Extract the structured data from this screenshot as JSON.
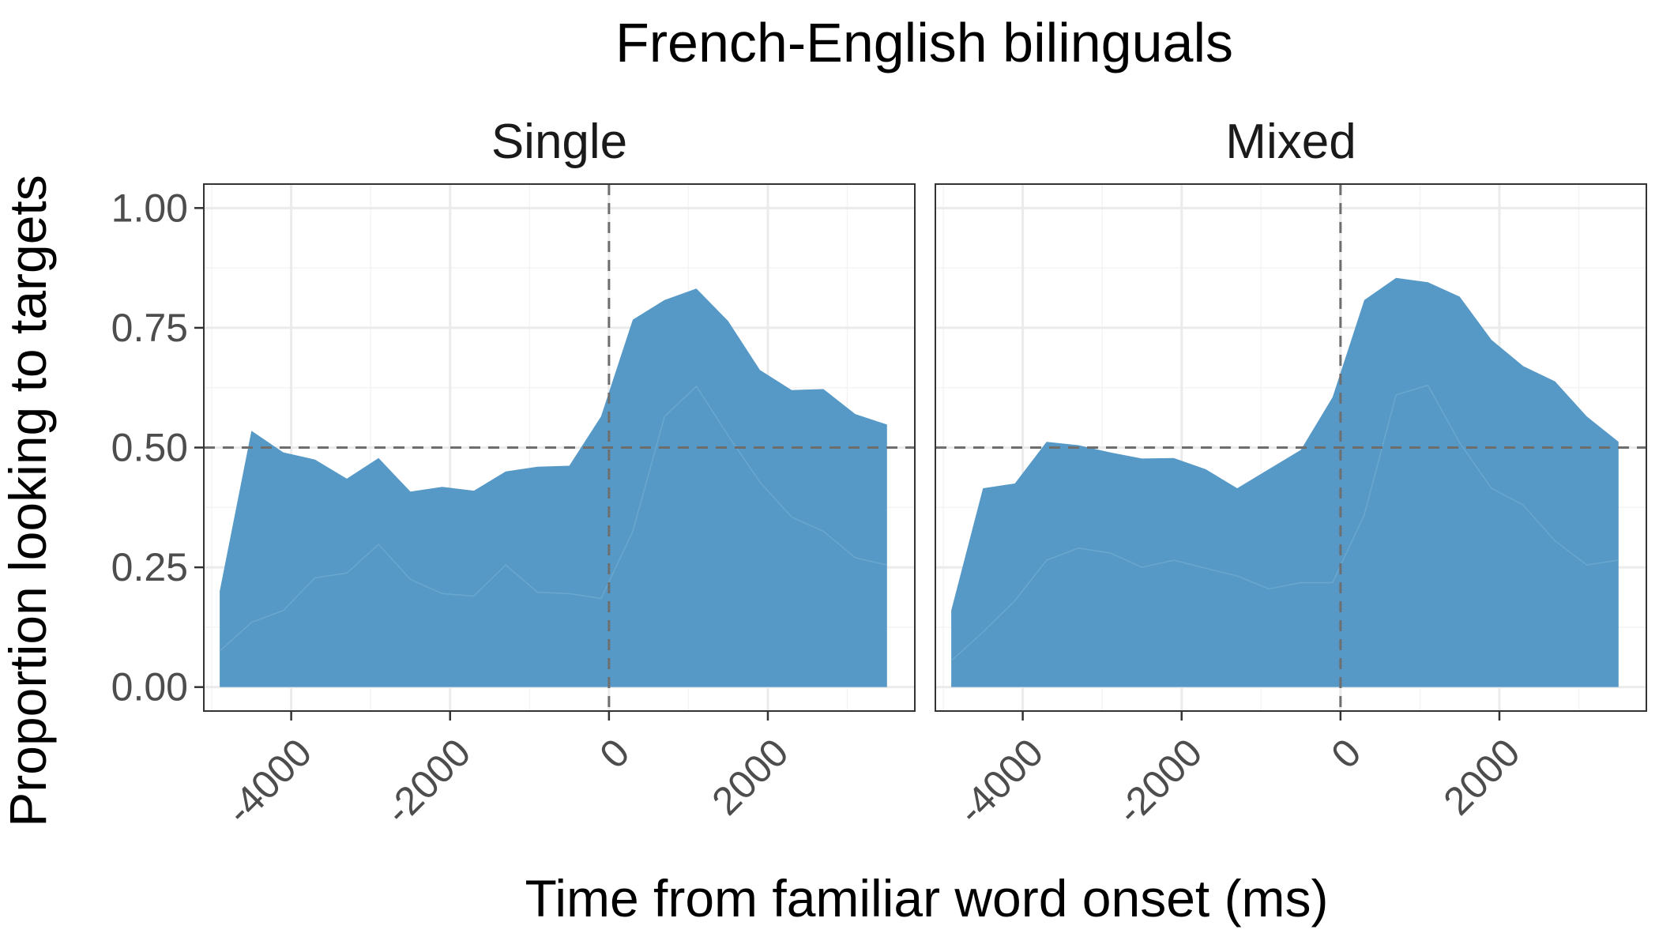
{
  "title": "French-English bilinguals",
  "xlabel": "Time from familiar word onset (ms)",
  "ylabel": "Proportion looking to targets",
  "colors": {
    "fill": "#5699c6",
    "panel_border": "#333333",
    "grid_major": "#ebebeb",
    "grid_minor": "#f4f4f4",
    "reference_line": "#6e6e6e",
    "tick_text": "#4d4d4d"
  },
  "chart_data": {
    "type": "area",
    "title": "French-English bilinguals",
    "xlabel": "Time from familiar word onset (ms)",
    "ylabel": "Proportion looking to targets",
    "xlim": [
      -5100,
      3850
    ],
    "ylim": [
      -0.05,
      1.05
    ],
    "x_ticks": [
      -4000,
      -2000,
      0,
      2000
    ],
    "x_tick_labels": [
      "-4000",
      "-2000",
      "0",
      "2000"
    ],
    "y_ticks": [
      0,
      0.25,
      0.5,
      0.75,
      1
    ],
    "y_tick_labels": [
      "0.00",
      "0.25",
      "0.50",
      "0.75",
      "1.00"
    ],
    "reference_lines": {
      "x": 0,
      "y": 0.5
    },
    "grid": true,
    "panels": [
      {
        "name": "Single",
        "x": [
          -4900,
          -4500,
          -4100,
          -3700,
          -3300,
          -2900,
          -2500,
          -2100,
          -1700,
          -1300,
          -900,
          -500,
          -100,
          300,
          700,
          1100,
          1500,
          1900,
          2300,
          2700,
          3100,
          3500
        ],
        "upper": [
          0.2,
          0.535,
          0.49,
          0.475,
          0.435,
          0.478,
          0.408,
          0.418,
          0.41,
          0.45,
          0.46,
          0.462,
          0.565,
          0.767,
          0.808,
          0.832,
          0.764,
          0.662,
          0.62,
          0.622,
          0.57,
          0.548
        ],
        "lower": [
          0.075,
          0.135,
          0.16,
          0.228,
          0.238,
          0.298,
          0.225,
          0.195,
          0.19,
          0.255,
          0.198,
          0.195,
          0.185,
          0.325,
          0.565,
          0.628,
          0.525,
          0.428,
          0.355,
          0.325,
          0.27,
          0.255
        ]
      },
      {
        "name": "Mixed",
        "x": [
          -4900,
          -4500,
          -4100,
          -3700,
          -3300,
          -2900,
          -2500,
          -2100,
          -1700,
          -1300,
          -900,
          -500,
          -100,
          300,
          700,
          1100,
          1500,
          1900,
          2300,
          2700,
          3100,
          3500
        ],
        "upper": [
          0.16,
          0.415,
          0.425,
          0.512,
          0.505,
          0.49,
          0.477,
          0.478,
          0.455,
          0.415,
          0.455,
          0.495,
          0.605,
          0.808,
          0.854,
          0.845,
          0.815,
          0.725,
          0.67,
          0.638,
          0.565,
          0.512
        ],
        "lower": [
          0.055,
          0.115,
          0.18,
          0.265,
          0.29,
          0.28,
          0.25,
          0.265,
          0.248,
          0.232,
          0.205,
          0.218,
          0.218,
          0.36,
          0.61,
          0.63,
          0.51,
          0.415,
          0.38,
          0.305,
          0.255,
          0.265
        ]
      }
    ]
  }
}
